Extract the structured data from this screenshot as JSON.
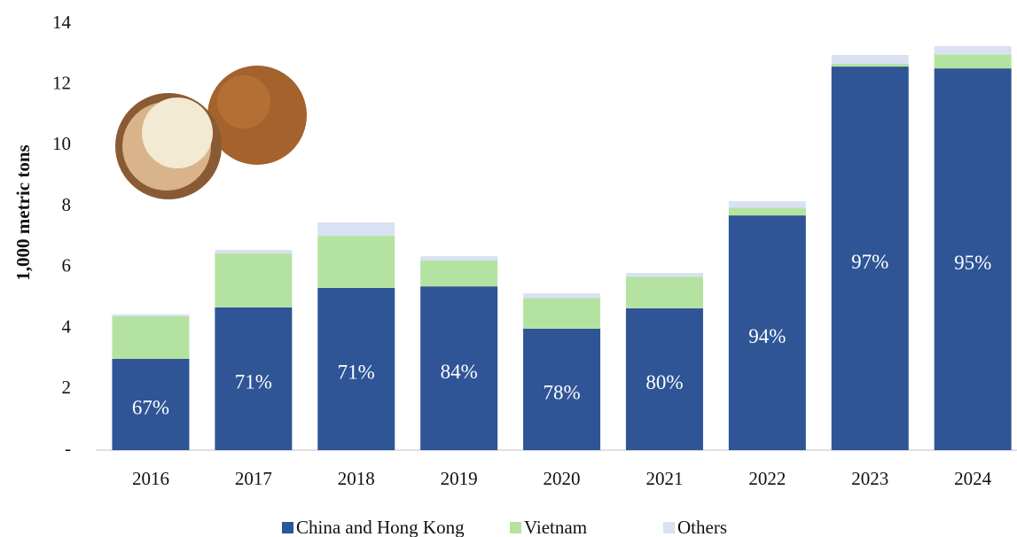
{
  "chart_data": {
    "type": "stacked_bar",
    "y_label": "1,000 metric tons",
    "categories": [
      "2016",
      "2017",
      "2018",
      "2019",
      "2020",
      "2021",
      "2022",
      "2023",
      "2024"
    ],
    "series": [
      {
        "name": "China and Hong Kong",
        "color": "#2f5597",
        "values": [
          3.0,
          4.69,
          5.33,
          5.38,
          3.99,
          4.66,
          7.71,
          12.6,
          12.54
        ]
      },
      {
        "name": "Vietnam",
        "color": "#b4e3a1",
        "values": [
          1.4,
          1.77,
          1.71,
          0.85,
          1.01,
          1.04,
          0.26,
          0.09,
          0.46
        ]
      },
      {
        "name": "Others",
        "color": "#d9e1f2",
        "values": [
          0.06,
          0.12,
          0.44,
          0.14,
          0.15,
          0.12,
          0.21,
          0.29,
          0.27
        ]
      }
    ],
    "share_labels": [
      "67%",
      "71%",
      "71%",
      "84%",
      "78%",
      "80%",
      "94%",
      "97%",
      "95%"
    ],
    "ylim": [
      0,
      14
    ],
    "yticks": [
      {
        "value": 0,
        "label": "-"
      },
      2,
      4,
      6,
      8,
      10,
      12,
      14
    ],
    "legend": "bottom"
  }
}
